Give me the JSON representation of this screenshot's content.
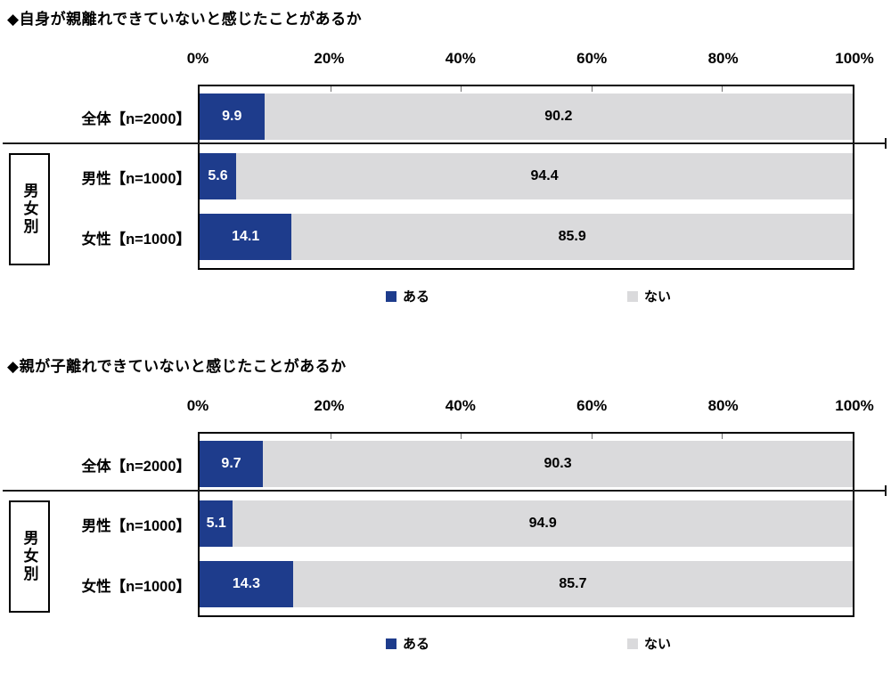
{
  "colors": {
    "bar_yes": "#1E3C8C",
    "bar_no": "#DADADC",
    "border": "#000000"
  },
  "chart_data": [
    {
      "type": "bar",
      "stacked": true,
      "orientation": "horizontal",
      "title": "◆自身が親離れできていないと感じたことがあるか",
      "categories": [
        "全体【n=2000】",
        "男性【n=1000】",
        "女性【n=1000】"
      ],
      "group_label": "男女別",
      "series": [
        {
          "name": "ある",
          "color": "#1E3C8C",
          "values": [
            9.9,
            5.6,
            14.1
          ]
        },
        {
          "name": "ない",
          "color": "#DADADC",
          "values": [
            90.2,
            94.4,
            85.9
          ]
        }
      ],
      "xlim": [
        0,
        100
      ],
      "x_ticks": [
        "0%",
        "20%",
        "40%",
        "60%",
        "80%",
        "100%"
      ],
      "legend_position": "bottom",
      "grid": false
    },
    {
      "type": "bar",
      "stacked": true,
      "orientation": "horizontal",
      "title": "◆親が子離れできていないと感じたことがあるか",
      "categories": [
        "全体【n=2000】",
        "男性【n=1000】",
        "女性【n=1000】"
      ],
      "group_label": "男女別",
      "series": [
        {
          "name": "ある",
          "color": "#1E3C8C",
          "values": [
            9.7,
            5.1,
            14.3
          ]
        },
        {
          "name": "ない",
          "color": "#DADADC",
          "values": [
            90.3,
            94.9,
            85.7
          ]
        }
      ],
      "xlim": [
        0,
        100
      ],
      "x_ticks": [
        "0%",
        "20%",
        "40%",
        "60%",
        "80%",
        "100%"
      ],
      "legend_position": "bottom",
      "grid": false
    }
  ]
}
